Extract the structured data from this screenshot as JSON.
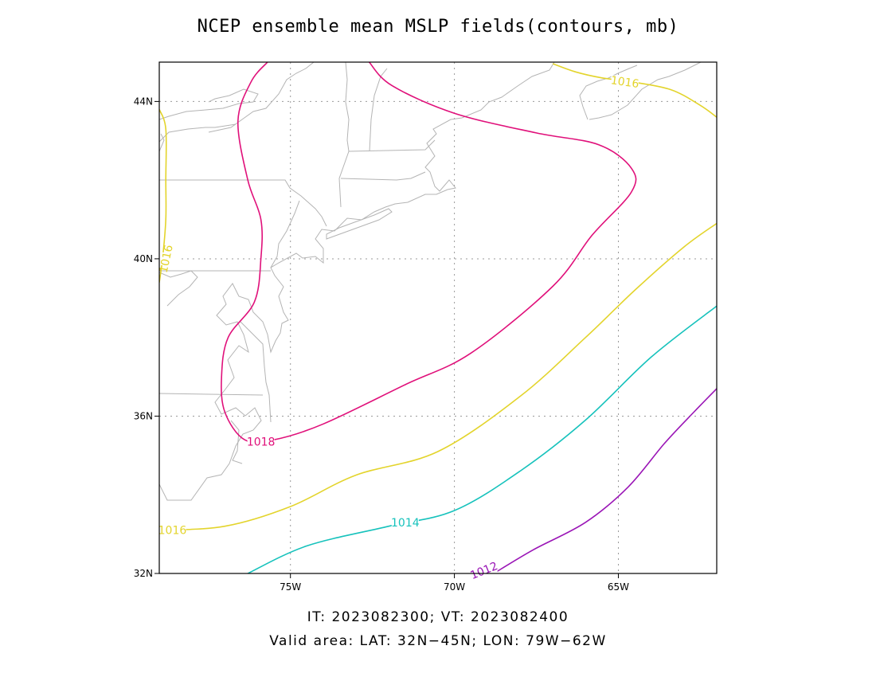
{
  "title": "NCEP ensemble mean MSLP fields(contours, mb)",
  "footer": {
    "line1": "IT: 2023082300; VT: 2023082400",
    "line2": "Valid area: LAT: 32N−45N; LON: 79W−62W"
  },
  "axes": {
    "lon_range": [
      -79,
      -62
    ],
    "lat_range": [
      32,
      45
    ],
    "x_ticks": [
      {
        "value": -75,
        "label": "75W"
      },
      {
        "value": -70,
        "label": "70W"
      },
      {
        "value": -65,
        "label": "65W"
      }
    ],
    "y_ticks": [
      {
        "value": 44,
        "label": "44N"
      },
      {
        "value": 40,
        "label": "40N"
      },
      {
        "value": 36,
        "label": "36N"
      },
      {
        "value": 32,
        "label": "32N"
      }
    ],
    "grid": "dotted"
  },
  "contours": [
    {
      "level": 1018,
      "label": "1018",
      "color": "#e0107a",
      "points": [
        [
          -75.7,
          45.0
        ],
        [
          -76.2,
          44.5
        ],
        [
          -76.6,
          43.5
        ],
        [
          -76.3,
          42.0
        ],
        [
          -75.9,
          41.0
        ],
        [
          -75.9,
          40.0
        ],
        [
          -76.1,
          38.9
        ],
        [
          -76.9,
          38.0
        ],
        [
          -77.1,
          37.0
        ],
        [
          -77.0,
          36.1
        ],
        [
          -76.4,
          35.4
        ],
        [
          -75.5,
          35.4
        ],
        [
          -74.0,
          35.8
        ],
        [
          -71.5,
          36.8
        ],
        [
          -69.5,
          37.6
        ],
        [
          -67.0,
          39.3
        ],
        [
          -65.8,
          40.6
        ],
        [
          -64.6,
          41.7
        ],
        [
          -64.6,
          42.3
        ],
        [
          -65.6,
          42.9
        ],
        [
          -67.5,
          43.2
        ],
        [
          -70.0,
          43.7
        ],
        [
          -71.9,
          44.4
        ],
        [
          -72.6,
          45.0
        ]
      ],
      "label_at": [
        -75.9,
        35.35
      ]
    },
    {
      "level": 1016,
      "label": "1016",
      "color": "#e3d42c",
      "points": [
        [
          -79.0,
          43.8
        ],
        [
          -78.8,
          43.3
        ],
        [
          -78.8,
          42.0
        ],
        [
          -78.8,
          41.0
        ],
        [
          -78.9,
          40.0
        ],
        [
          -79.0,
          39.4
        ]
      ],
      "label_at": [
        -78.8,
        40.0
      ]
    },
    {
      "level": 1016,
      "label": "1016",
      "color": "#e3d42c",
      "points": [
        [
          -79.0,
          33.1
        ],
        [
          -77.0,
          33.2
        ],
        [
          -75.0,
          33.7
        ],
        [
          -73.0,
          34.5
        ],
        [
          -70.5,
          35.1
        ],
        [
          -68.0,
          36.5
        ],
        [
          -66.0,
          38.0
        ],
        [
          -64.5,
          39.2
        ],
        [
          -63.0,
          40.3
        ],
        [
          -62.0,
          40.9
        ]
      ],
      "label_at": [
        -78.6,
        33.1
      ]
    },
    {
      "level": 1016,
      "label": "1016",
      "color": "#e3d42c",
      "points": [
        [
          -67.0,
          44.96
        ],
        [
          -66.3,
          44.75
        ],
        [
          -65.5,
          44.6
        ],
        [
          -64.6,
          44.5
        ],
        [
          -63.4,
          44.3
        ],
        [
          -62.5,
          43.9
        ],
        [
          -62.0,
          43.6
        ]
      ],
      "label_at": [
        -64.8,
        44.5
      ]
    },
    {
      "level": 1014,
      "label": "1014",
      "color": "#16c2bc",
      "points": [
        [
          -76.3,
          32.0
        ],
        [
          -74.5,
          32.7
        ],
        [
          -72.0,
          33.2
        ],
        [
          -70.0,
          33.6
        ],
        [
          -68.0,
          34.6
        ],
        [
          -66.0,
          35.9
        ],
        [
          -64.0,
          37.5
        ],
        [
          -62.0,
          38.8
        ]
      ],
      "label_at": [
        -71.5,
        33.3
      ]
    },
    {
      "level": 1012,
      "label": "1012",
      "color": "#9a15b6",
      "points": [
        [
          -68.8,
          32.0
        ],
        [
          -67.6,
          32.6
        ],
        [
          -66.0,
          33.3
        ],
        [
          -64.7,
          34.2
        ],
        [
          -63.6,
          35.3
        ],
        [
          -62.7,
          36.1
        ],
        [
          -62.0,
          36.7
        ]
      ],
      "label_at": [
        -69.1,
        32.08
      ]
    }
  ]
}
